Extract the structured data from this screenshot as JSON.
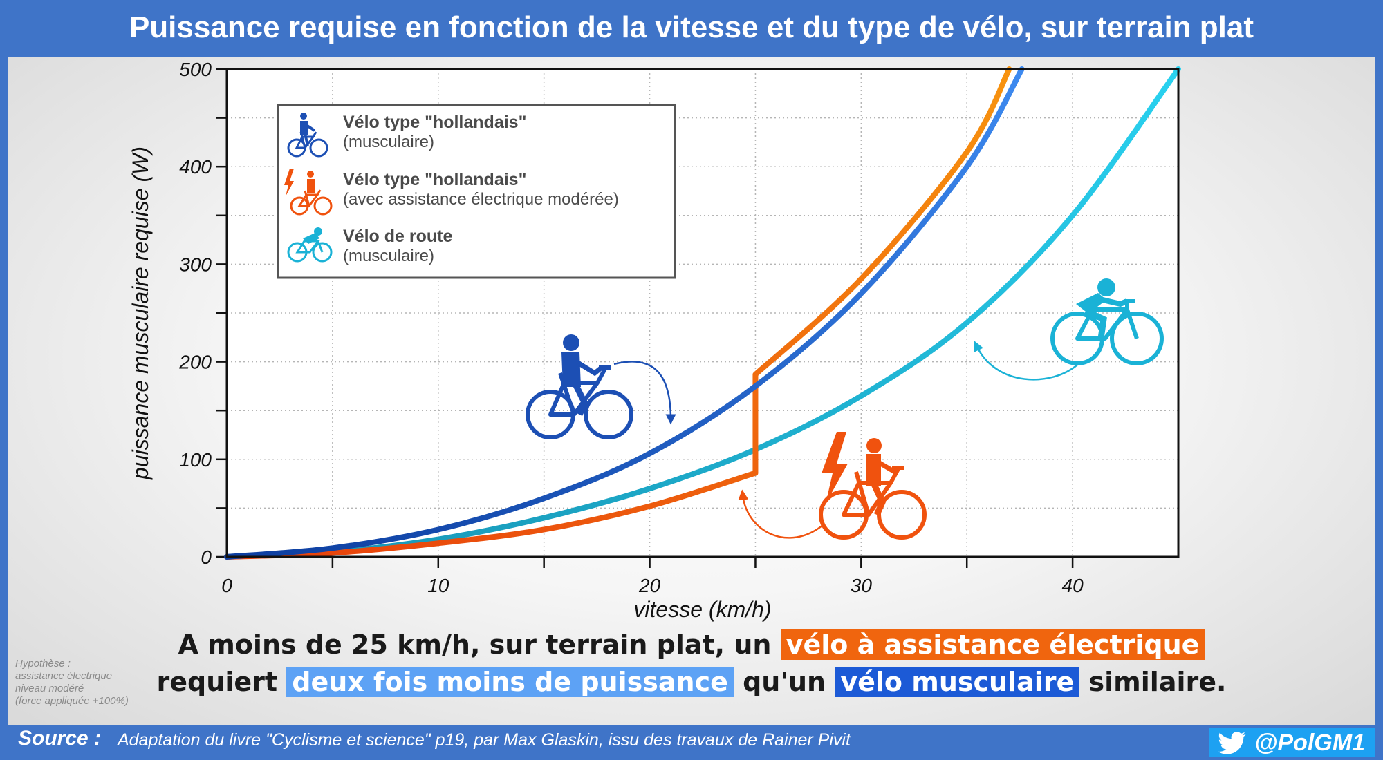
{
  "header": {
    "title": "Puissance requise en fonction de la vitesse et du type de vélo, sur terrain plat"
  },
  "conclusion": {
    "line1_start": "A moins de 25 km/h, sur terrain plat, un ",
    "line1_highlight": "vélo à assistance électrique",
    "line2_start": "requiert ",
    "line2_highlight1": "deux fois moins de puissance",
    "line2_mid": " qu'un ",
    "line2_highlight2": "vélo musculaire",
    "line2_end": " similaire."
  },
  "hypothesis": [
    "Hypothèse :",
    "assistance électrique",
    "niveau modéré",
    "(force appliquée +100%)"
  ],
  "footer": {
    "source_label": "Source :",
    "source_text": "Adaptation du livre \"Cyclisme et science\" p19, par Max Glaskin, issu des travaux de Rainer Pivit",
    "handle": "@PolGM1"
  },
  "colors": {
    "header_bg": "#3f74c8",
    "dutch": "#1c4fb4",
    "ebike": "#f0520e",
    "road": "#1ab2d6",
    "twitter": "#1da1f2"
  },
  "chart_data": {
    "type": "line",
    "xlabel": "vitesse (km/h)",
    "ylabel": "puissance musculaire requise (W)",
    "xlim": [
      0,
      45
    ],
    "ylim": [
      0,
      500
    ],
    "xticks": [
      0,
      10,
      20,
      30,
      40
    ],
    "yticks": [
      0,
      100,
      200,
      300,
      400,
      500
    ],
    "grid": true,
    "legend_position": "top-left",
    "series": [
      {
        "name": "Vélo type \"hollandais\"",
        "subtitle": "(musculaire)",
        "color": "#1c4fb4",
        "x": [
          0,
          5,
          10,
          15,
          20,
          25,
          30,
          35,
          37.6
        ],
        "y": [
          0,
          9,
          28,
          60,
          106,
          175,
          270,
          400,
          500
        ]
      },
      {
        "name": "Vélo type \"hollandais\"",
        "subtitle": "(avec assistance électrique modérée)",
        "color": "#f0520e",
        "x": [
          0,
          5,
          10,
          15,
          20,
          25,
          25,
          30,
          35,
          37
        ],
        "y": [
          0,
          4,
          14,
          28,
          52,
          86,
          187,
          285,
          415,
          500
        ]
      },
      {
        "name": "Vélo de route",
        "subtitle": "(musculaire)",
        "color": "#1ab2d6",
        "x": [
          0,
          5,
          10,
          15,
          20,
          25,
          30,
          35,
          40,
          45
        ],
        "y": [
          0,
          5,
          18,
          40,
          70,
          110,
          165,
          240,
          350,
          500
        ]
      }
    ]
  }
}
